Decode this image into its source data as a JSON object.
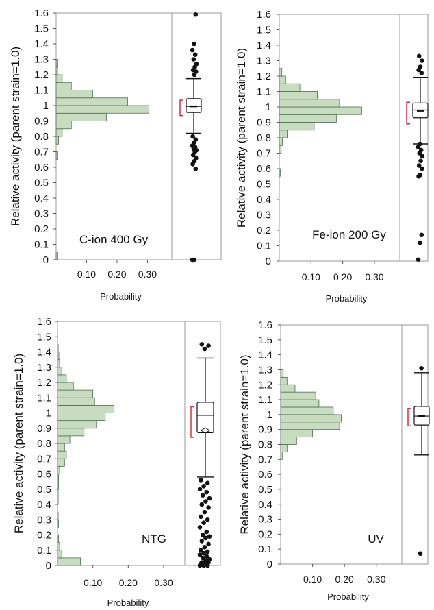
{
  "chart_data": [
    {
      "type": "histogram-boxplot",
      "annotation": "C-ion 400 Gy",
      "ylabel": "Relative activity (parent strain=1.0)",
      "xlabel": "Probability",
      "ylim": [
        0,
        1.6
      ],
      "yticks": [
        "0",
        "0.1",
        "0.2",
        "0.3",
        "0.4",
        "0.5",
        "0.6",
        "0.7",
        "0.8",
        "0.9",
        "1",
        "1.1",
        "1.2",
        "1.3",
        "1.4",
        "1.5",
        "1.6"
      ],
      "xticks": [
        "0.10",
        "0.20",
        "0.30"
      ],
      "xlim": [
        0,
        0.38
      ],
      "bin_width": 0.05,
      "bins": [
        {
          "lo": 0.0,
          "p": 0.004
        },
        {
          "lo": 0.65,
          "p": 0.003
        },
        {
          "lo": 0.75,
          "p": 0.008
        },
        {
          "lo": 0.8,
          "p": 0.02
        },
        {
          "lo": 0.85,
          "p": 0.05
        },
        {
          "lo": 0.9,
          "p": 0.165
        },
        {
          "lo": 0.95,
          "p": 0.305
        },
        {
          "lo": 1.0,
          "p": 0.235
        },
        {
          "lo": 1.05,
          "p": 0.12
        },
        {
          "lo": 1.1,
          "p": 0.05
        },
        {
          "lo": 1.15,
          "p": 0.02
        },
        {
          "lo": 1.2,
          "p": 0.005
        },
        {
          "lo": 1.25,
          "p": 0.003
        }
      ],
      "box": {
        "q1": 0.955,
        "median": 0.995,
        "q3": 1.045,
        "mean": 0.995,
        "whisker_low": 0.82,
        "whisker_high": 1.175,
        "ci": [
          0.935,
          1.035
        ],
        "mean_diamond": false
      },
      "outliers": [
        0,
        0,
        0.59,
        0.62,
        0.64,
        0.66,
        0.68,
        0.7,
        0.71,
        0.72,
        0.73,
        0.74,
        0.76,
        0.78,
        0.8,
        1.2,
        1.22,
        1.23,
        1.25,
        1.27,
        1.3,
        1.33,
        1.36,
        1.4,
        1.59
      ]
    },
    {
      "type": "histogram-boxplot",
      "annotation": "Fe-ion 200 Gy",
      "ylabel": "Relative activity (parent strain=1.0)",
      "xlabel": "Probability",
      "ylim": [
        0,
        1.6
      ],
      "yticks": [
        "0",
        "0.1",
        "0.2",
        "0.3",
        "0.4",
        "0.5",
        "0.6",
        "0.7",
        "0.8",
        "0.9",
        "1",
        "1.1",
        "1.2",
        "1.3",
        "1.4",
        "1.5",
        "1.6"
      ],
      "xticks": [
        "0.10",
        "0.20",
        "0.30"
      ],
      "xlim": [
        0,
        0.38
      ],
      "bin_width": 0.05,
      "bins": [
        {
          "lo": 0.55,
          "p": 0.003
        },
        {
          "lo": 0.7,
          "p": 0.006
        },
        {
          "lo": 0.75,
          "p": 0.01
        },
        {
          "lo": 0.8,
          "p": 0.025
        },
        {
          "lo": 0.85,
          "p": 0.11
        },
        {
          "lo": 0.9,
          "p": 0.18
        },
        {
          "lo": 0.95,
          "p": 0.26
        },
        {
          "lo": 1.0,
          "p": 0.19
        },
        {
          "lo": 1.05,
          "p": 0.12
        },
        {
          "lo": 1.1,
          "p": 0.065
        },
        {
          "lo": 1.15,
          "p": 0.02
        },
        {
          "lo": 1.2,
          "p": 0.008
        }
      ],
      "box": {
        "q1": 0.93,
        "median": 0.98,
        "q3": 1.025,
        "mean": 0.975,
        "whisker_low": 0.76,
        "whisker_high": 1.19,
        "ci": [
          0.89,
          1.03
        ],
        "mean_diamond": false
      },
      "outliers": [
        0.01,
        0.12,
        0.17,
        0.55,
        0.56,
        0.6,
        0.62,
        0.65,
        0.68,
        0.7,
        0.72,
        0.74,
        0.76,
        1.22,
        1.24,
        1.26,
        1.3,
        1.33
      ]
    },
    {
      "type": "histogram-boxplot",
      "annotation": "NTG",
      "ylabel": "Relative activity (parent strain=1.0)",
      "xlabel": "Probability",
      "ylim": [
        0,
        1.6
      ],
      "yticks": [
        "0",
        "0.1",
        "0.2",
        "0.3",
        "0.4",
        "0.5",
        "0.6",
        "0.7",
        "0.8",
        "0.9",
        "1",
        "1.1",
        "1.2",
        "1.3",
        "1.4",
        "1.5",
        "1.6"
      ],
      "xticks": [
        "0.10",
        "0.20",
        "0.30"
      ],
      "xlim": [
        0,
        0.36
      ],
      "bin_width": 0.05,
      "bins": [
        {
          "lo": 0.0,
          "p": 0.065
        },
        {
          "lo": 0.05,
          "p": 0.012
        },
        {
          "lo": 0.1,
          "p": 0.006
        },
        {
          "lo": 0.15,
          "p": 0.003
        },
        {
          "lo": 0.25,
          "p": 0.003
        },
        {
          "lo": 0.3,
          "p": 0.002
        },
        {
          "lo": 0.4,
          "p": 0.002
        },
        {
          "lo": 0.45,
          "p": 0.002
        },
        {
          "lo": 0.5,
          "p": 0.003
        },
        {
          "lo": 0.55,
          "p": 0.003
        },
        {
          "lo": 0.6,
          "p": 0.006
        },
        {
          "lo": 0.65,
          "p": 0.02
        },
        {
          "lo": 0.7,
          "p": 0.025
        },
        {
          "lo": 0.75,
          "p": 0.02
        },
        {
          "lo": 0.8,
          "p": 0.035
        },
        {
          "lo": 0.85,
          "p": 0.075
        },
        {
          "lo": 0.9,
          "p": 0.11
        },
        {
          "lo": 0.95,
          "p": 0.135
        },
        {
          "lo": 1.0,
          "p": 0.16
        },
        {
          "lo": 1.05,
          "p": 0.105
        },
        {
          "lo": 1.1,
          "p": 0.1
        },
        {
          "lo": 1.15,
          "p": 0.045
        },
        {
          "lo": 1.2,
          "p": 0.025
        },
        {
          "lo": 1.25,
          "p": 0.012
        },
        {
          "lo": 1.3,
          "p": 0.006
        },
        {
          "lo": 1.35,
          "p": 0.004
        },
        {
          "lo": 1.4,
          "p": 0.002
        }
      ],
      "box": {
        "q1": 0.87,
        "median": 0.985,
        "q3": 1.07,
        "mean": 0.885,
        "whisker_low": 0.58,
        "whisker_high": 1.36,
        "ci": [
          0.84,
          1.04
        ],
        "mean_diamond": true
      },
      "outliers": [
        0,
        0,
        0,
        0.01,
        0.01,
        0.02,
        0.02,
        0.03,
        0.04,
        0.05,
        0.06,
        0.07,
        0.08,
        0.09,
        0.1,
        0.12,
        0.14,
        0.16,
        0.18,
        0.19,
        0.2,
        0.22,
        0.25,
        0.28,
        0.3,
        0.32,
        0.35,
        0.38,
        0.4,
        0.42,
        0.44,
        0.46,
        0.48,
        0.5,
        0.52,
        0.54,
        0.56,
        1.42,
        1.44,
        1.45
      ]
    },
    {
      "type": "histogram-boxplot",
      "annotation": "UV",
      "ylabel": "Relative activity (parent strain=1.0)",
      "xlabel": "Probability",
      "ylim": [
        0,
        1.6
      ],
      "yticks": [
        "0",
        "0.1",
        "0.2",
        "0.3",
        "0.4",
        "0.5",
        "0.6",
        "0.7",
        "0.8",
        "0.9",
        "1",
        "1.1",
        "1.2",
        "1.3",
        "1.4",
        "1.5",
        "1.6"
      ],
      "xticks": [
        "0.10",
        "0.20",
        "0.30"
      ],
      "xlim": [
        0,
        0.38
      ],
      "bin_width": 0.05,
      "bins": [
        {
          "lo": 0.7,
          "p": 0.006
        },
        {
          "lo": 0.75,
          "p": 0.02
        },
        {
          "lo": 0.8,
          "p": 0.05
        },
        {
          "lo": 0.85,
          "p": 0.1
        },
        {
          "lo": 0.9,
          "p": 0.185
        },
        {
          "lo": 0.95,
          "p": 0.19
        },
        {
          "lo": 1.0,
          "p": 0.165
        },
        {
          "lo": 1.05,
          "p": 0.12
        },
        {
          "lo": 1.1,
          "p": 0.11
        },
        {
          "lo": 1.15,
          "p": 0.045
        },
        {
          "lo": 1.2,
          "p": 0.02
        },
        {
          "lo": 1.25,
          "p": 0.008
        }
      ],
      "box": {
        "q1": 0.93,
        "median": 0.99,
        "q3": 1.055,
        "mean": 0.99,
        "whisker_low": 0.73,
        "whisker_high": 1.28,
        "ci": [
          0.925,
          1.04
        ],
        "mean_diamond": false
      },
      "outliers": [
        0.07,
        1.31
      ]
    }
  ],
  "colors": {
    "bar_fill": "#c8dcc2",
    "bar_stroke": "#4d6d4d",
    "ci_bracket": "#d0243a",
    "ink": "#111111"
  }
}
